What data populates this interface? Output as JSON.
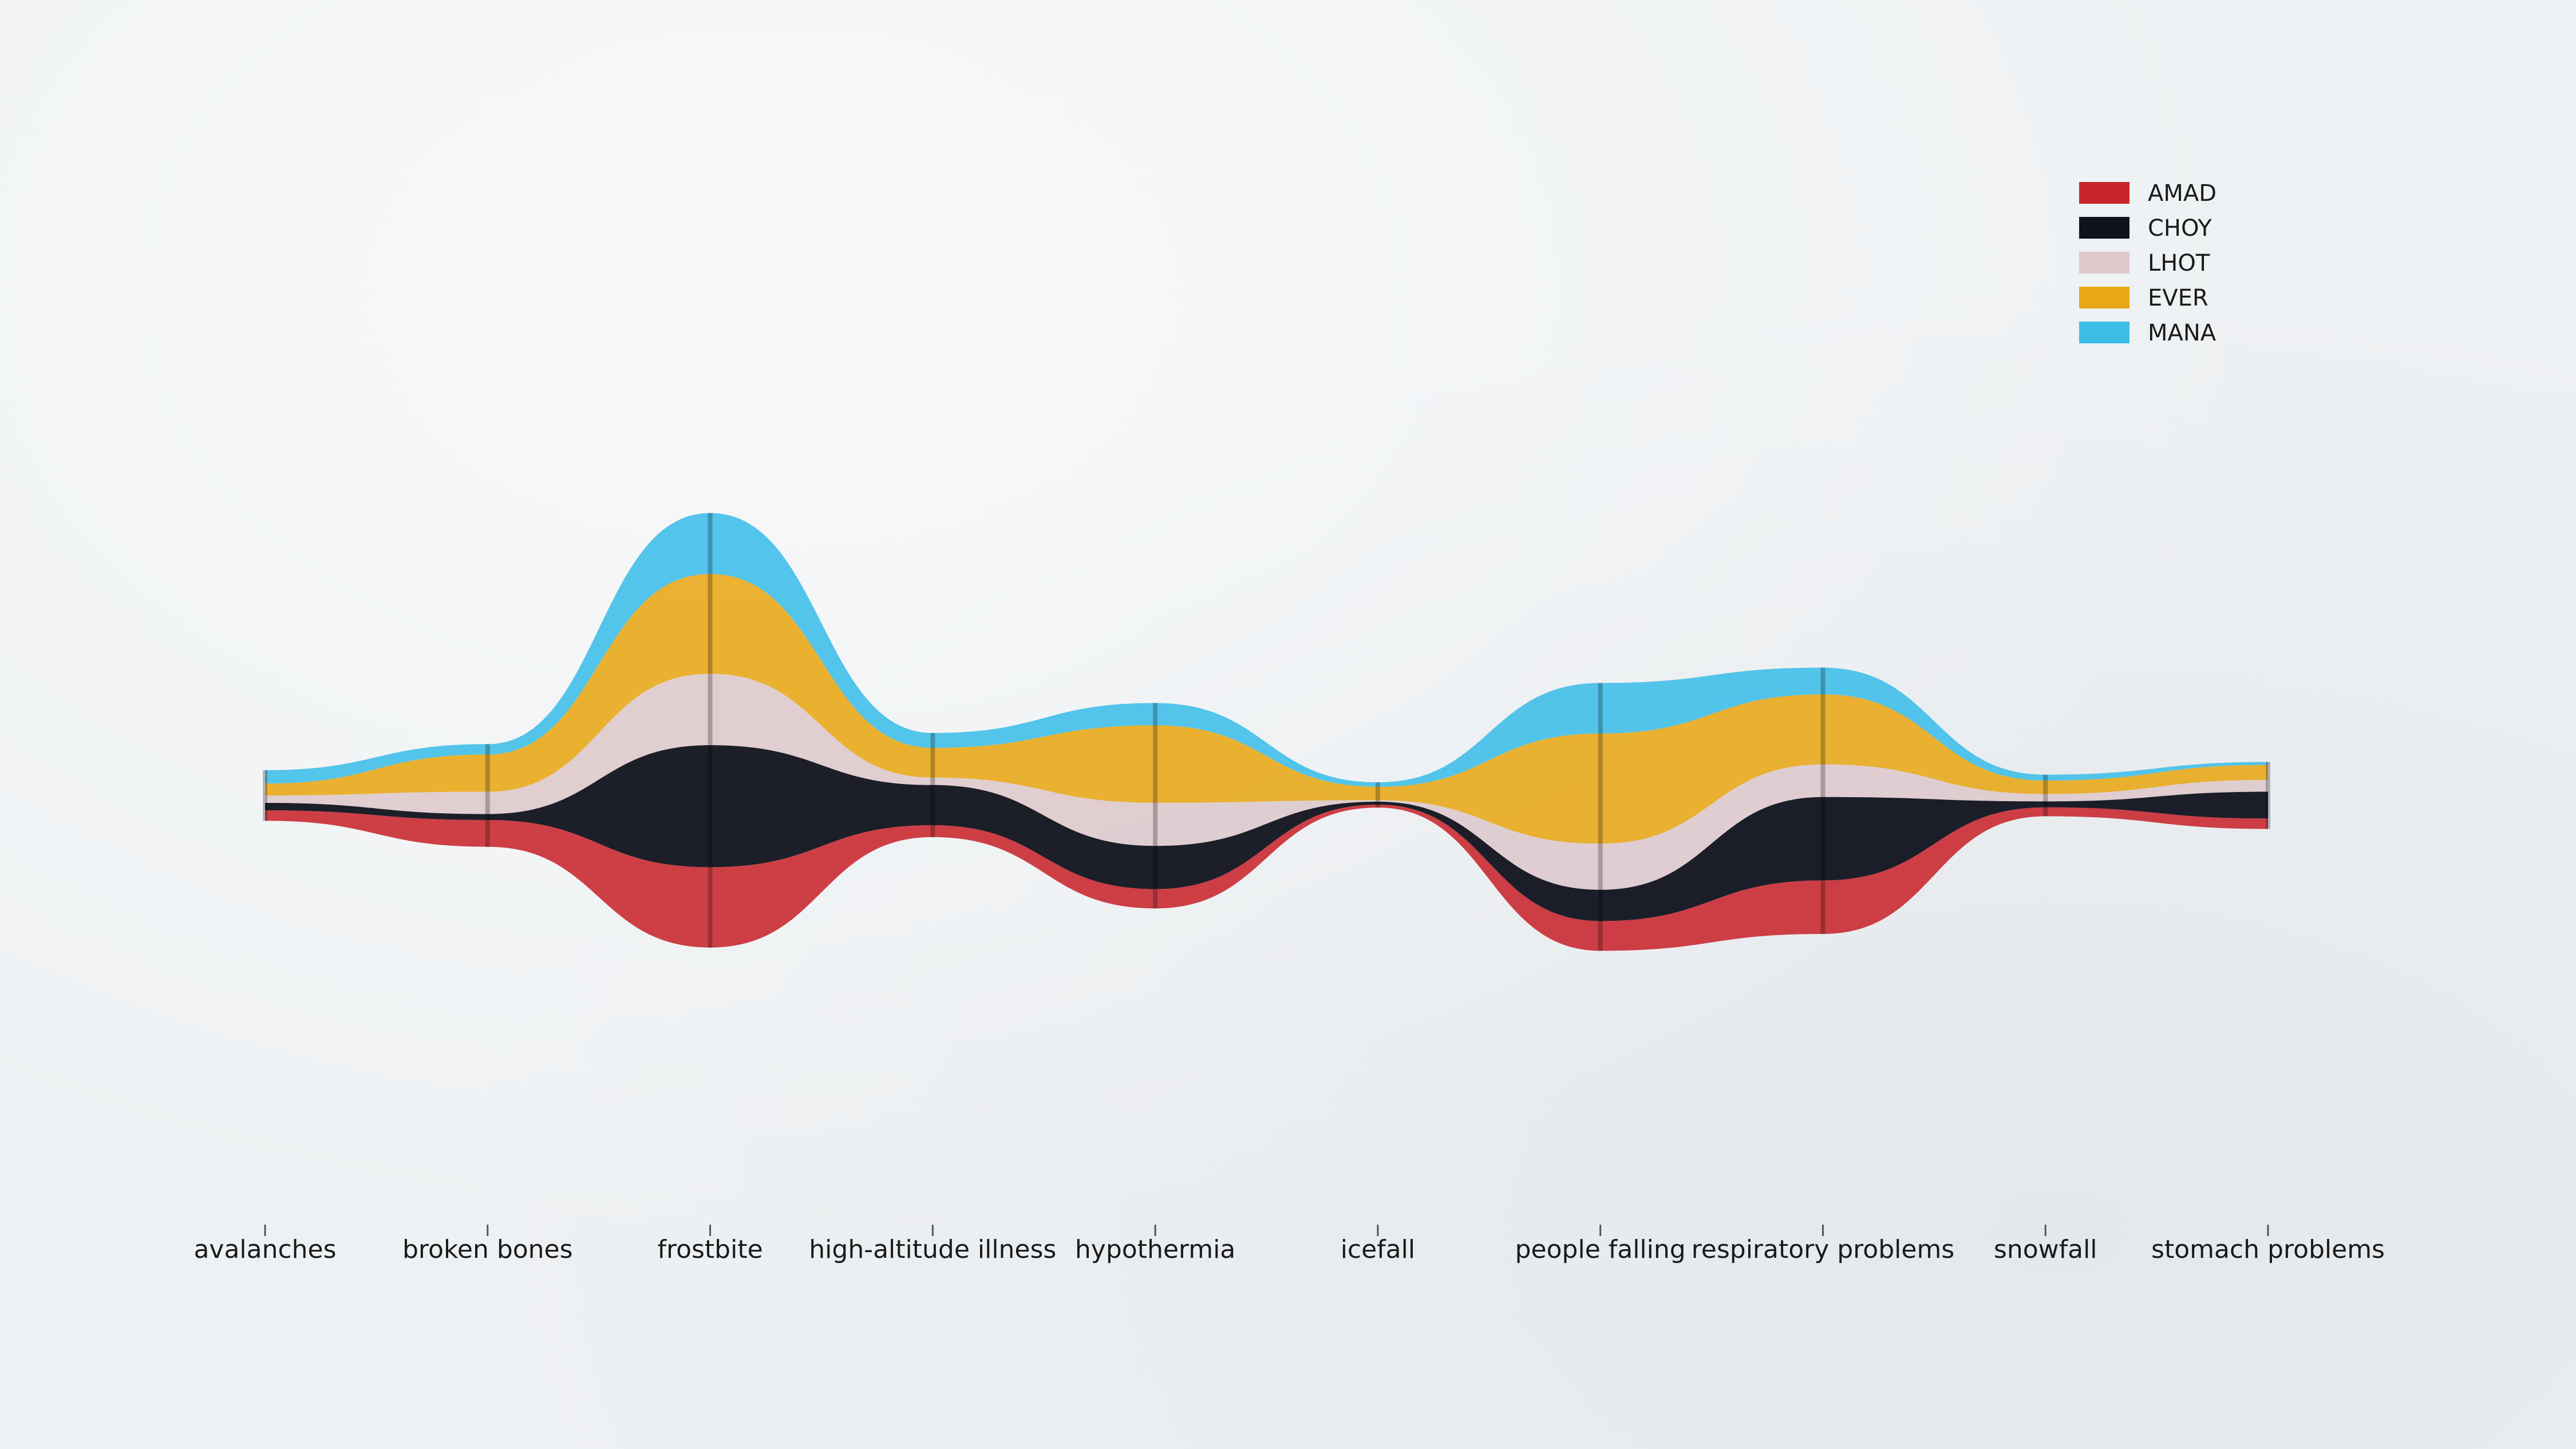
{
  "chart_data": {
    "type": "area",
    "title": "",
    "xlabel": "",
    "ylabel": "",
    "categories": [
      "avalanches",
      "broken bones",
      "frostbite",
      "high-altitude illness",
      "hypothermia",
      "icefall",
      "people falling",
      "respiratory problems",
      "snowfall",
      "stomach problems"
    ],
    "series": [
      {
        "name": "AMAD",
        "color": "#c8242c",
        "values": [
          0.7,
          1.8,
          5.4,
          0.8,
          1.3,
          0.2,
          2.0,
          3.6,
          0.6,
          0.7
        ]
      },
      {
        "name": "CHOY",
        "color": "#10121c",
        "values": [
          0.5,
          0.4,
          8.2,
          2.7,
          2.9,
          0.2,
          2.1,
          5.6,
          0.4,
          1.8
        ]
      },
      {
        "name": "LHOT",
        "color": "#ddc8cc",
        "values": [
          0.5,
          1.5,
          4.8,
          0.5,
          2.9,
          0.1,
          3.1,
          2.2,
          0.5,
          0.8
        ]
      },
      {
        "name": "EVER",
        "color": "#e8a716",
        "values": [
          0.8,
          2.5,
          6.7,
          2.0,
          5.2,
          0.9,
          7.4,
          4.7,
          0.9,
          1.0
        ]
      },
      {
        "name": "MANA",
        "color": "#3cbde8",
        "values": [
          0.9,
          0.7,
          4.1,
          1.0,
          1.5,
          0.3,
          3.4,
          1.8,
          0.4,
          0.2
        ]
      }
    ],
    "legend_position": "top-right",
    "grid": false
  }
}
